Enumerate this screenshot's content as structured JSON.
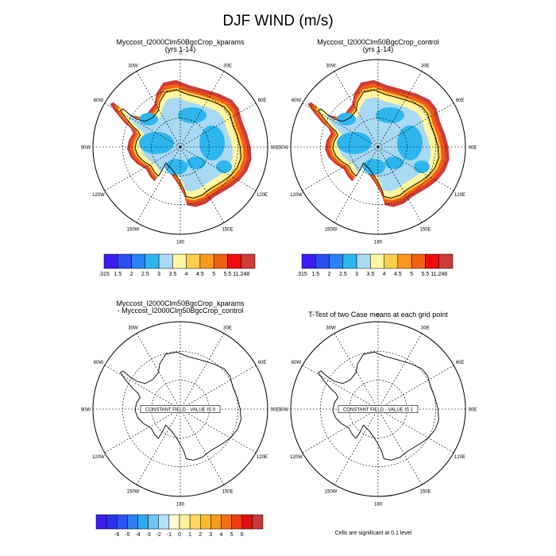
{
  "title": "DJF WIND (m/s)",
  "panels": [
    {
      "id": "kparams",
      "title": "Myccost_I2000Clm50BgcCrop_kparams",
      "subtitle": "(yrs 1-14)",
      "filled": true,
      "label_box": ""
    },
    {
      "id": "control",
      "title": "Myccost_I2000Clm50BgcCrop_control",
      "subtitle": "(yrs 1-14)",
      "filled": true,
      "label_box": ""
    },
    {
      "id": "difference",
      "title": "Myccost_I2000Clm50BgcCrop_kparams",
      "subtitle": "- Myccost_I2000Clm50BgcCrop_control",
      "filled": false,
      "label_box": "CONSTANT FIELD - VALUE IS 0"
    },
    {
      "id": "ttest",
      "title": "T-Test of two Case means at each grid point",
      "subtitle": "",
      "filled": false,
      "label_box": "CONSTANT FIELD - VALUE IS 1"
    }
  ],
  "longitude_labels": [
    "0",
    "30E",
    "60E",
    "90E",
    "120E",
    "150E",
    "180",
    "150W",
    "120W",
    "90W",
    "60W",
    "30W"
  ],
  "colorbar_main": {
    "colors": [
      "#3c1df0",
      "#2b4ef0",
      "#2a83f5",
      "#2db7ee",
      "#a9d9f3",
      "#fff6a2",
      "#fbce4c",
      "#f99a1e",
      "#f26012",
      "#ee0c0c",
      "#cf3a3a"
    ],
    "labels": [
      ".315",
      "1.5",
      "2",
      "2.5",
      "3",
      "3.5",
      "4",
      "4.5",
      "5",
      "5.5",
      "11.248"
    ]
  },
  "colorbar_diff": {
    "colors": [
      "#3c1df0",
      "#2b30f0",
      "#2b55f0",
      "#2c80f2",
      "#2fa8f0",
      "#6fc4f0",
      "#b5e0f5",
      "#fffbd0",
      "#fff1a0",
      "#fcd95a",
      "#fbbd2d",
      "#f89b1c",
      "#f27013",
      "#ee3c10",
      "#e0100f",
      "#c8383a"
    ],
    "labels": [
      "-6",
      "-5",
      "-4",
      "-3",
      "-2",
      "-1",
      "0",
      "1",
      "2",
      "3",
      "4",
      "5",
      "6"
    ]
  },
  "footnote": "Cells are significant at 0.1 level",
  "colors": {
    "land_low": "#a9d9f3",
    "land_mid": "#2db7ee",
    "land_edge_yellow": "#fff6a2",
    "land_edge_orange": "#fbce4c",
    "land_edge_dark": "#f26012",
    "land_edge_red": "#cf3a3a"
  }
}
